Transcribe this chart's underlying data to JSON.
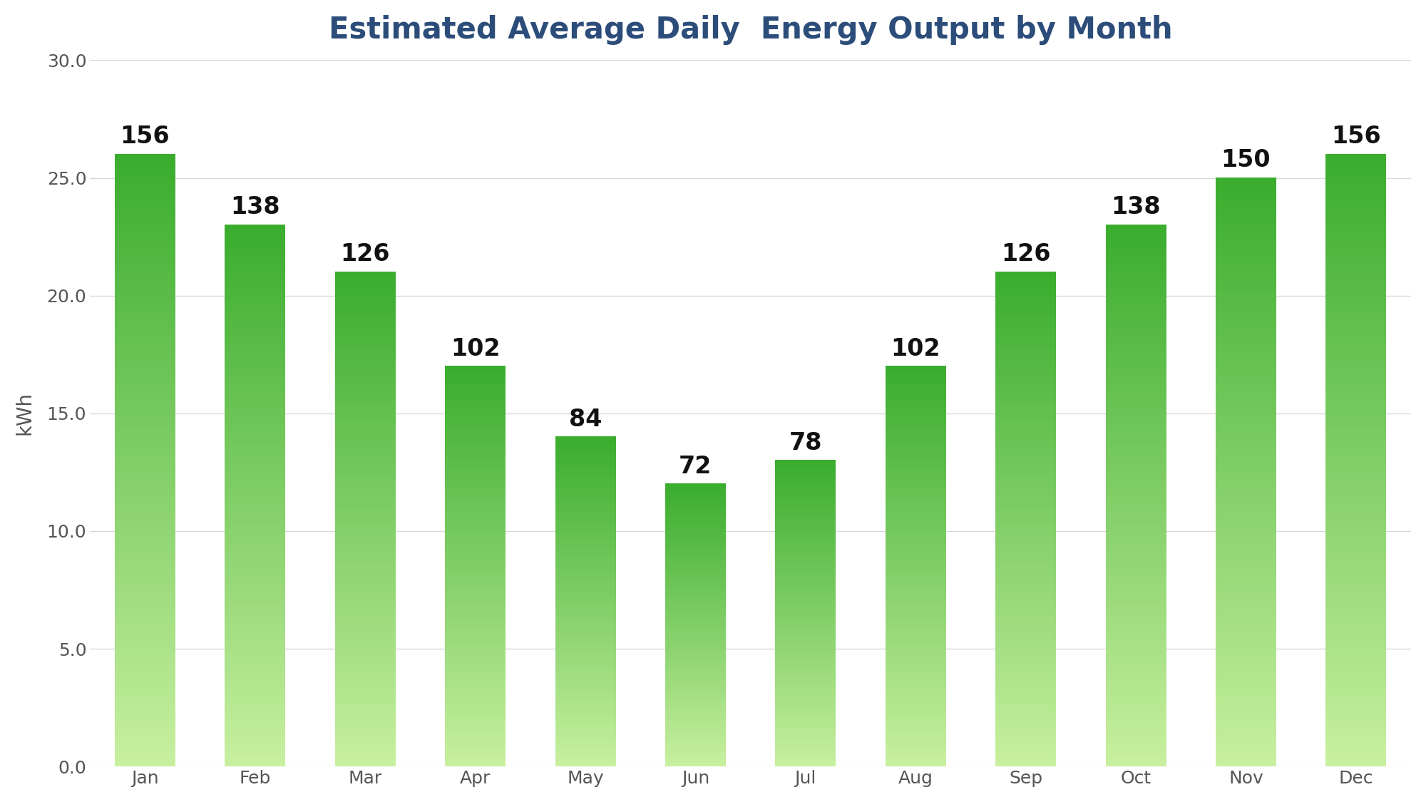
{
  "title": "Estimated Average Daily  Energy Output by Month",
  "months": [
    "Jan",
    "Feb",
    "Mar",
    "Apr",
    "May",
    "Jun",
    "Jul",
    "Aug",
    "Sep",
    "Oct",
    "Nov",
    "Dec"
  ],
  "display_values": [
    156,
    138,
    126,
    102,
    84,
    72,
    78,
    102,
    126,
    138,
    150,
    156
  ],
  "bar_heights": [
    26.0,
    23.0,
    21.0,
    17.0,
    14.0,
    12.0,
    13.0,
    17.0,
    21.0,
    23.0,
    25.0,
    26.0
  ],
  "ylabel": "kWh",
  "ylim": [
    0,
    30
  ],
  "yticks": [
    0.0,
    5.0,
    10.0,
    15.0,
    20.0,
    25.0,
    30.0
  ],
  "bar_color_top": "#3aad2e",
  "bar_color_bottom": "#c8f0a0",
  "background_color": "#ffffff",
  "title_color": "#2c4d7a",
  "axis_color": "#555555",
  "grid_color": "#d8d8d8",
  "label_color": "#111111",
  "title_fontsize": 30,
  "label_fontsize": 20,
  "tick_fontsize": 18,
  "annotation_fontsize": 24,
  "bar_width": 0.55
}
